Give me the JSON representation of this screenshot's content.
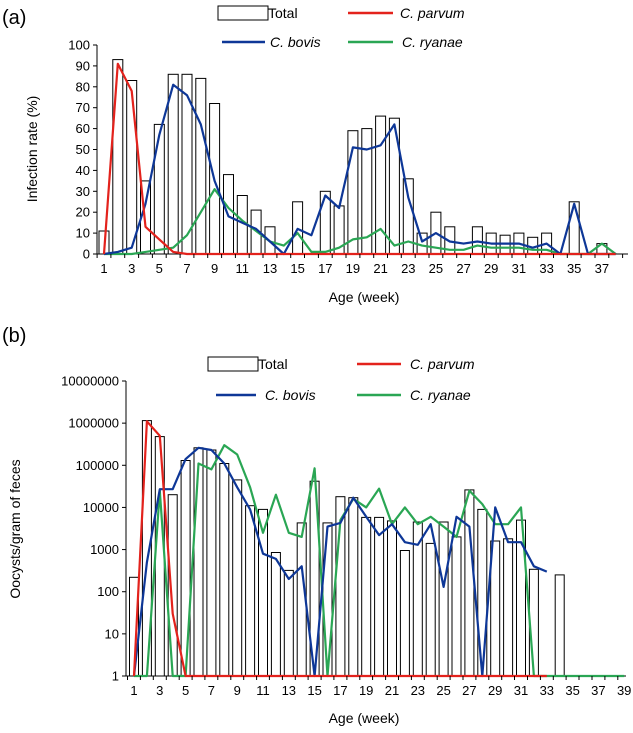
{
  "colors": {
    "total": "#ffffff",
    "total_stroke": "#000000",
    "parvum": "#e3221c",
    "bovis": "#0e3797",
    "ryanae": "#2aa654"
  },
  "chart_data": [
    {
      "panel_label": "(a)",
      "type": "bar",
      "xlabel": "Age (week)",
      "ylabel": "Infection rate (%)",
      "ylim": [
        0,
        100
      ],
      "yticks": [
        "0",
        "10",
        "20",
        "30",
        "40",
        "50",
        "60",
        "70",
        "80",
        "90",
        "100"
      ],
      "x": [
        1,
        2,
        3,
        4,
        5,
        6,
        7,
        8,
        9,
        10,
        11,
        12,
        13,
        14,
        15,
        16,
        17,
        18,
        19,
        20,
        21,
        22,
        23,
        24,
        25,
        26,
        27,
        28,
        29,
        30,
        31,
        32,
        33,
        34,
        35,
        36,
        37,
        38
      ],
      "xtick_labels": [
        "1",
        "3",
        "5",
        "7",
        "9",
        "11",
        "13",
        "15",
        "17",
        "19",
        "21",
        "23",
        "25",
        "27",
        "29",
        "31",
        "33",
        "35",
        "37"
      ],
      "legend": {
        "total": "Total",
        "parvum": "C. parvum",
        "bovis": "C. bovis",
        "ryanae": "C. ryanae"
      },
      "series": [
        {
          "name": "Total",
          "type": "bar",
          "values": [
            11,
            93,
            83,
            35,
            62,
            86,
            86,
            84,
            72,
            38,
            28,
            21,
            13,
            0,
            25,
            0,
            30,
            23,
            59,
            60,
            66,
            65,
            36,
            10,
            20,
            13,
            0,
            13,
            10,
            9,
            10,
            8,
            10,
            0,
            25,
            0,
            5,
            0
          ]
        },
        {
          "name": "C. parvum",
          "type": "line",
          "values": [
            0,
            91,
            78,
            13,
            7,
            1,
            0,
            0,
            0,
            0,
            0,
            0,
            0,
            0,
            0,
            0,
            0,
            0,
            0,
            0,
            0,
            0,
            0,
            0,
            0,
            0,
            0,
            0,
            0,
            0,
            0,
            0,
            0,
            0,
            0,
            0,
            0,
            0
          ]
        },
        {
          "name": "C. bovis",
          "type": "line",
          "values": [
            0,
            1,
            3,
            24,
            57,
            81,
            76,
            62,
            35,
            18,
            15,
            12,
            6,
            0,
            12,
            9,
            28,
            22,
            51,
            50,
            52,
            62,
            27,
            6,
            10,
            6,
            5,
            6,
            5,
            5,
            5,
            3,
            5,
            0,
            24,
            0,
            0,
            0
          ]
        },
        {
          "name": "C. ryanae",
          "type": "line",
          "values": [
            0,
            0,
            0,
            1,
            2,
            3,
            9,
            20,
            31,
            22,
            16,
            11,
            6,
            4,
            10,
            1,
            1,
            3,
            7,
            8,
            12,
            4,
            6,
            4,
            3,
            2,
            2,
            4,
            3,
            3,
            3,
            2,
            2,
            0,
            0,
            0,
            5,
            0
          ]
        }
      ]
    },
    {
      "panel_label": "(b)",
      "type": "bar",
      "log_scale": true,
      "xlabel": "Age (week)",
      "ylabel": "Oocysts/gram of feces",
      "ylim": [
        1,
        10000000
      ],
      "yticks": [
        "1",
        "10",
        "100",
        "1000",
        "10000",
        "100000",
        "1000000",
        "10000000"
      ],
      "x": [
        1,
        2,
        3,
        4,
        5,
        6,
        7,
        8,
        9,
        10,
        11,
        12,
        13,
        14,
        15,
        16,
        17,
        18,
        19,
        20,
        21,
        22,
        23,
        24,
        25,
        26,
        27,
        28,
        29,
        30,
        31,
        32,
        33,
        34,
        35,
        36,
        37,
        38,
        39
      ],
      "xtick_labels": [
        "1",
        "3",
        "5",
        "7",
        "9",
        "11",
        "13",
        "15",
        "17",
        "19",
        "21",
        "23",
        "25",
        "27",
        "29",
        "31",
        "33",
        "35",
        "37",
        "39"
      ],
      "legend": {
        "total": "Total",
        "parvum": "C. parvum",
        "bovis": "C. bovis",
        "ryanae": "C. ryanae"
      },
      "series": [
        {
          "name": "Total",
          "type": "bar",
          "values": [
            220,
            1150000,
            480000,
            20000,
            130000,
            260000,
            230000,
            110000,
            45000,
            11000,
            9000,
            850,
            320,
            4300,
            42000,
            4300,
            18000,
            17000,
            5800,
            5800,
            4800,
            950,
            4500,
            1400,
            4500,
            2000,
            26000,
            9000,
            1600,
            1800,
            5000,
            340,
            null,
            250,
            null,
            null,
            null,
            null,
            null
          ]
        },
        {
          "name": "C. parvum",
          "type": "line",
          "values": [
            1,
            1100000,
            500000,
            30,
            1,
            1,
            1,
            1,
            1,
            1,
            1,
            1,
            1,
            1,
            1,
            1,
            1,
            1,
            1,
            1,
            1,
            1,
            1,
            1,
            1,
            1,
            1,
            1,
            1,
            1,
            1,
            1,
            1,
            null,
            null,
            null,
            null,
            null,
            null
          ]
        },
        {
          "name": "C. bovis",
          "type": "line",
          "values": [
            1,
            500,
            27000,
            27000,
            140000,
            260000,
            230000,
            110000,
            30000,
            9000,
            800,
            600,
            200,
            400,
            1,
            3500,
            4300,
            17000,
            6000,
            2200,
            4000,
            1500,
            1300,
            4000,
            130,
            6000,
            3500,
            1,
            10000,
            1500,
            1500,
            400,
            300,
            null,
            null,
            null,
            null,
            null,
            null
          ]
        },
        {
          "name": "C. ryanae",
          "type": "line",
          "values": [
            1,
            1,
            25000,
            1,
            1,
            110000,
            80000,
            300000,
            180000,
            30000,
            2500,
            20000,
            2500,
            2000,
            85000,
            1,
            5000,
            16000,
            10000,
            28000,
            4000,
            10000,
            4000,
            6000,
            3500,
            2000,
            25000,
            12000,
            4000,
            4000,
            10000,
            1,
            1,
            1,
            1,
            1,
            1,
            1,
            1
          ]
        }
      ]
    }
  ]
}
